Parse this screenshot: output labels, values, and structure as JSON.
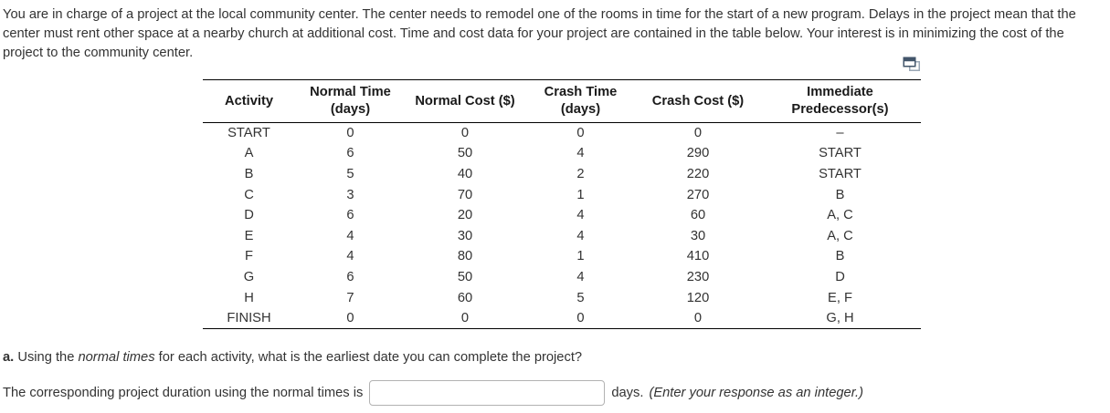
{
  "intro": "You are in charge of a project at the local community center. The center needs to remodel one of the rooms in time for the start of a new program. Delays in the project mean that the center must rent other space at a nearby church at additional cost. Time and cost data for your project are contained in the table below. Your interest is in minimizing the cost of the project to the community center.",
  "icons": {
    "pop_out_table": "overlapping-windows"
  },
  "table": {
    "columns": [
      {
        "label": "Activity",
        "lines": [
          "Activity"
        ]
      },
      {
        "label": "Normal Time (days)",
        "lines": [
          "Normal Time",
          "(days)"
        ]
      },
      {
        "label": "Normal Cost ($)",
        "lines": [
          "Normal Cost ($)"
        ]
      },
      {
        "label": "Crash Time (days)",
        "lines": [
          "Crash Time",
          "(days)"
        ]
      },
      {
        "label": "Crash Cost ($)",
        "lines": [
          "Crash Cost ($)"
        ]
      },
      {
        "label": "Immediate Predecessor(s)",
        "lines": [
          "Immediate",
          "Predecessor(s)"
        ]
      }
    ],
    "rows": [
      [
        "START",
        "0",
        "0",
        "0",
        "0",
        "–"
      ],
      [
        "A",
        "6",
        "50",
        "4",
        "290",
        "START"
      ],
      [
        "B",
        "5",
        "40",
        "2",
        "220",
        "START"
      ],
      [
        "C",
        "3",
        "70",
        "1",
        "270",
        "B"
      ],
      [
        "D",
        "6",
        "20",
        "4",
        "60",
        "A, C"
      ],
      [
        "E",
        "4",
        "30",
        "4",
        "30",
        "A, C"
      ],
      [
        "F",
        "4",
        "80",
        "1",
        "410",
        "B"
      ],
      [
        "G",
        "6",
        "50",
        "4",
        "230",
        "D"
      ],
      [
        "H",
        "7",
        "60",
        "5",
        "120",
        "E, F"
      ],
      [
        "FINISH",
        "0",
        "0",
        "0",
        "0",
        "G, H"
      ]
    ]
  },
  "question_a": {
    "prefix": "a.",
    "text_before_italic": " Using the ",
    "italic": "normal times",
    "text_after_italic": " for each activity, what is the earliest date you can complete the project?"
  },
  "answer_line": {
    "text_before_input": "The corresponding project duration using the normal times is",
    "input_value": "",
    "text_after_input": "days.",
    "italic_note": "(Enter your response as an integer.)"
  },
  "colors": {
    "text": "#333333",
    "table_border": "#000000",
    "input_border": "#b2b2b2",
    "icon_dark": "#42556a",
    "icon_light": "#9aa7b5"
  }
}
